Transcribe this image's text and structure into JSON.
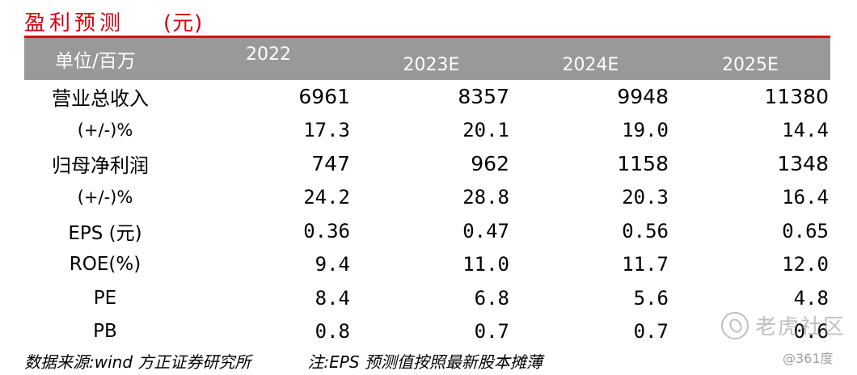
{
  "title": {
    "text": "盈利预测",
    "unit": "(元)"
  },
  "table": {
    "headers": [
      "单位/百万",
      "2022",
      "2023E",
      "2024E",
      "2025E"
    ],
    "rows": [
      {
        "label": "营业总收入",
        "values": [
          "6961",
          "8357",
          "9948",
          "11380"
        ]
      },
      {
        "label": "(+/-)%",
        "values": [
          "17.3",
          "20.1",
          "19.0",
          "14.4"
        ]
      },
      {
        "label": "归母净利润",
        "values": [
          "747",
          "962",
          "1158",
          "1348"
        ]
      },
      {
        "label": "(+/-)%",
        "values": [
          "24.2",
          "28.8",
          "20.3",
          "16.4"
        ]
      },
      {
        "label": "EPS (元)",
        "values": [
          "0.36",
          "0.47",
          "0.56",
          "0.65"
        ]
      },
      {
        "label": "ROE(%)",
        "values": [
          "9.4",
          "11.0",
          "11.7",
          "12.0"
        ]
      },
      {
        "label": "PE",
        "values": [
          "8.4",
          "6.8",
          "5.6",
          "4.8"
        ]
      },
      {
        "label": "PB",
        "values": [
          "0.8",
          "0.7",
          "0.7",
          "0.6"
        ]
      }
    ]
  },
  "footer": {
    "source": "数据来源:wind 方正证券研究所",
    "note": "注:EPS 预测值按照最新股本摊薄"
  },
  "watermark": {
    "brand": "老虎社区",
    "handle": "@361度"
  },
  "colors": {
    "accent": "#e60012",
    "header_bg": "#999999"
  }
}
